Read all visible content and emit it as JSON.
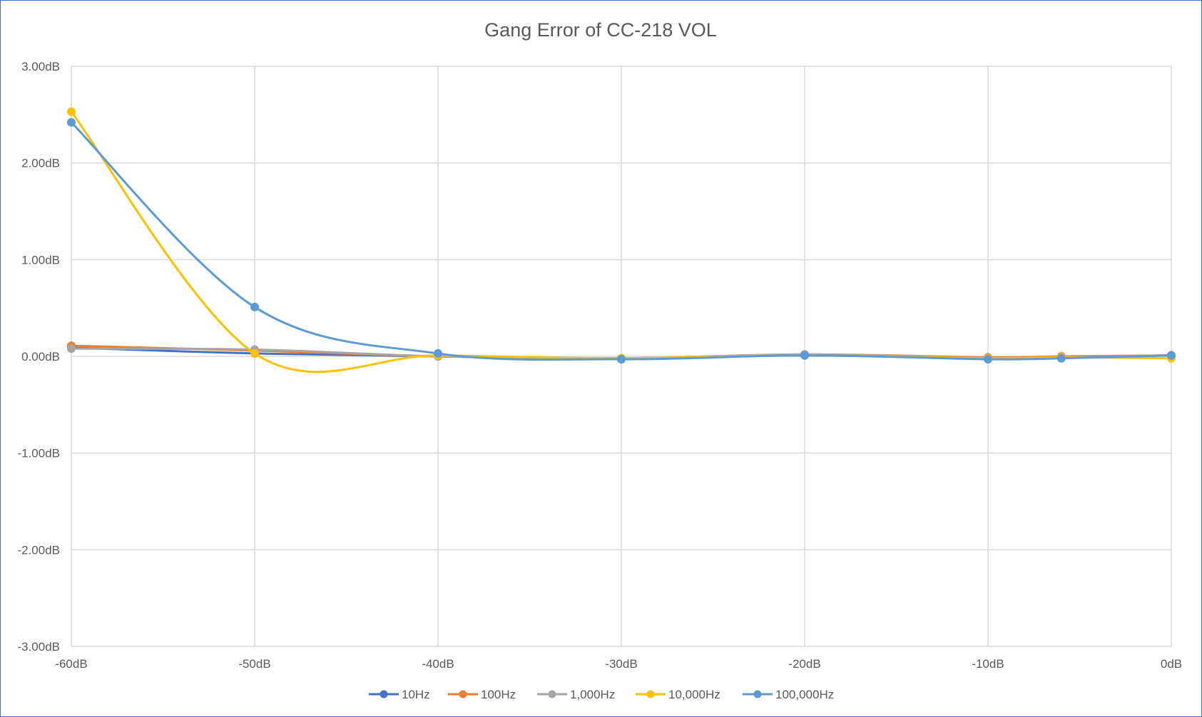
{
  "chart_data": {
    "type": "line",
    "title": "Gang Error of CC-218 VOL",
    "xlabel": "",
    "ylabel": "",
    "x": [
      -60,
      -50,
      -40,
      -30,
      -20,
      -10,
      -6,
      0
    ],
    "x_tick_labels": [
      "-60dB",
      "-50dB",
      "-40dB",
      "-30dB",
      "-20dB",
      "-10dB",
      "0dB"
    ],
    "x_ticks": [
      -60,
      -50,
      -40,
      -30,
      -20,
      -10,
      0
    ],
    "xlim": [
      -60,
      0
    ],
    "y_tick_labels": [
      "3.00dB",
      "2.00dB",
      "1.00dB",
      "0.00dB",
      "-1.00dB",
      "-2.00dB",
      "-3.00dB"
    ],
    "y_ticks": [
      3,
      2,
      1,
      0,
      -1,
      -2,
      -3
    ],
    "ylim": [
      -3,
      3
    ],
    "grid": true,
    "smooth": true,
    "legend_position": "bottom",
    "series": [
      {
        "name": "10Hz",
        "color": "#4472c4",
        "values": [
          0.09,
          0.03,
          0.0,
          -0.02,
          0.01,
          -0.02,
          -0.01,
          0.01
        ]
      },
      {
        "name": "100Hz",
        "color": "#ed7d31",
        "values": [
          0.11,
          0.06,
          0.0,
          -0.02,
          0.02,
          -0.01,
          0.0,
          0.01
        ]
      },
      {
        "name": "1,000Hz",
        "color": "#a5a5a5",
        "values": [
          0.08,
          0.07,
          0.0,
          -0.02,
          0.02,
          -0.02,
          -0.01,
          0.01
        ]
      },
      {
        "name": "10,000Hz",
        "color": "#ffc000",
        "values": [
          2.53,
          0.03,
          0.01,
          -0.02,
          0.01,
          -0.02,
          -0.01,
          -0.02
        ]
      },
      {
        "name": "100,000Hz",
        "color": "#5b9bd5",
        "values": [
          2.42,
          0.51,
          0.03,
          -0.03,
          0.01,
          -0.03,
          -0.02,
          0.01
        ]
      }
    ]
  }
}
